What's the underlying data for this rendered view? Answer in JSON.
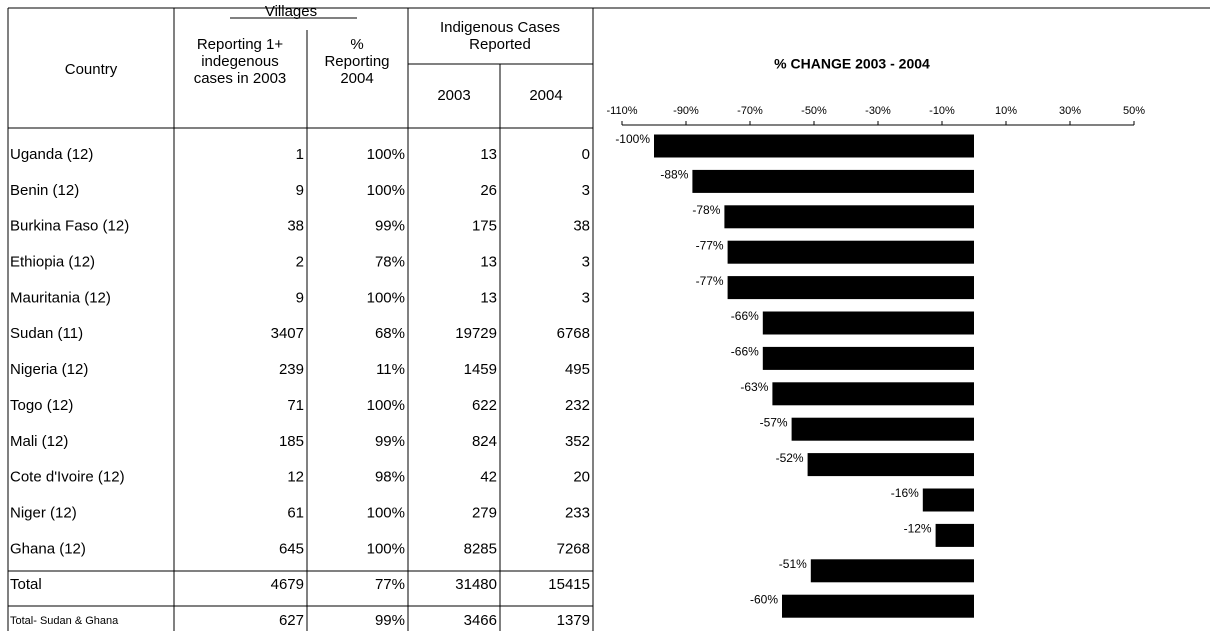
{
  "table": {
    "header": {
      "country": "Country",
      "villages": "Villages",
      "reporting": [
        "Reporting 1+",
        "indegenous",
        "cases in 2003"
      ],
      "percent": [
        "%",
        "Reporting",
        "2004"
      ],
      "cases": [
        "Indigenous Cases",
        "Reported"
      ],
      "y2003": "2003",
      "y2004": "2004"
    },
    "rows": [
      [
        "Uganda (12)",
        "1",
        "100%",
        "13",
        "0"
      ],
      [
        "Benin (12)",
        "9",
        "100%",
        "26",
        "3"
      ],
      [
        "Burkina Faso (12)",
        "38",
        "99%",
        "175",
        "38"
      ],
      [
        "Ethiopia (12)",
        "2",
        "78%",
        "13",
        "3"
      ],
      [
        "Mauritania (12)",
        "9",
        "100%",
        "13",
        "3"
      ],
      [
        "Sudan (11)",
        "3407",
        "68%",
        "19729",
        "6768"
      ],
      [
        "Nigeria (12)",
        "239",
        "11%",
        "1459",
        "495"
      ],
      [
        "Togo (12)",
        "71",
        "100%",
        "622",
        "232"
      ],
      [
        "Mali (12)",
        "185",
        "99%",
        "824",
        "352"
      ],
      [
        "Cote d'Ivoire (12)",
        "12",
        "98%",
        "42",
        "20"
      ],
      [
        "Niger (12)",
        "61",
        "100%",
        "279",
        "233"
      ],
      [
        "Ghana (12)",
        "645",
        "100%",
        "8285",
        "7268"
      ],
      [
        "Total",
        "4679",
        "77%",
        "31480",
        "15415"
      ],
      [
        "Total- Sudan & Ghana",
        "627",
        "99%",
        "3466",
        "1379"
      ]
    ]
  },
  "chart_data": {
    "type": "bar",
    "orientation": "horizontal",
    "title": "% CHANGE 2003 - 2004",
    "color": "#000000",
    "values": [
      -100,
      -88,
      -78,
      -77,
      -77,
      -66,
      -66,
      -63,
      -57,
      -52,
      -16,
      -12,
      -51,
      -60
    ],
    "value_labels": [
      "-100%",
      "-88%",
      "-78%",
      "-77%",
      "-77%",
      "-66%",
      "-66%",
      "-63%",
      "-57%",
      "-52%",
      "-16%",
      "-12%",
      "-51%",
      "-60%"
    ],
    "xlim": [
      -110,
      50
    ],
    "xticks": [
      {
        "value": -110,
        "label": "-110%"
      },
      {
        "value": -90,
        "label": "-90%"
      },
      {
        "value": -70,
        "label": "-70%"
      },
      {
        "value": -50,
        "label": "-50%"
      },
      {
        "value": -30,
        "label": "-30%"
      },
      {
        "value": -10,
        "label": "-10%"
      },
      {
        "value": 10,
        "label": "10%"
      },
      {
        "value": 30,
        "label": "30%"
      },
      {
        "value": 50,
        "label": "50%"
      }
    ]
  }
}
